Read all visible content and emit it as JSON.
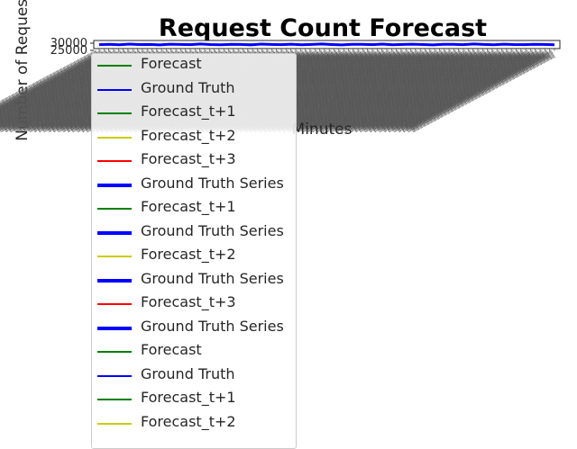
{
  "chart_data": {
    "type": "line",
    "title": "Request Count Forecast",
    "xlabel": "Minutes",
    "ylabel": "Number of Requests",
    "y_ticks": [
      "25000",
      "30000"
    ],
    "ylim": [
      24000,
      31500
    ],
    "grid": false,
    "legend_placement": "lower-left (overflowing)",
    "x_tick_count": 96,
    "series": [
      {
        "name": "Forecast",
        "color": "#008000",
        "style": "thin",
        "values": [
          27850,
          27700,
          27600,
          27900,
          28100,
          27800,
          27650,
          27950,
          28200,
          27900,
          27750,
          28000,
          27850,
          27600,
          27900,
          28150,
          27800,
          27700,
          28050,
          27900,
          27650,
          27850,
          28100,
          27750,
          27600,
          27900,
          28200,
          27950,
          27700,
          27850,
          28000,
          27800,
          27650,
          27900,
          28150,
          27850,
          27700,
          28000,
          27900,
          27750,
          27600,
          27950,
          28100,
          27800,
          27650,
          27900
        ]
      },
      {
        "name": "Ground Truth",
        "color": "#0000ff",
        "style": "thin",
        "values": [
          27600,
          28000,
          27500,
          28200,
          27700,
          27900,
          27400,
          28100,
          27800,
          27600,
          28300,
          27700,
          27500,
          28000,
          27800,
          27400,
          28200,
          27900,
          27600,
          28100,
          27500,
          27800,
          28300,
          27700,
          27400,
          28000,
          27900,
          27600,
          28200,
          27500,
          27800,
          28100,
          27700,
          27400,
          28000,
          27900,
          27600,
          28300,
          27800,
          27500,
          28100,
          27700,
          27600,
          28000,
          27800,
          27500
        ]
      },
      {
        "name": "Forecast_t+1",
        "color": "#008000",
        "style": "thin",
        "values": [
          27900,
          27750,
          27650,
          27950,
          28050,
          27850,
          27700,
          27900,
          28150,
          27950,
          27800,
          27950,
          27900,
          27650,
          27850,
          28100,
          27850,
          27750,
          28000,
          27950,
          27700,
          27800,
          28050,
          27800,
          27650,
          27850,
          28150,
          28000,
          27750,
          27800,
          27950,
          27850,
          27700,
          27850,
          28100,
          27900,
          27750,
          27950,
          27950,
          27800,
          27650,
          27900,
          28050,
          27850,
          27700,
          27850
        ]
      },
      {
        "name": "Forecast_t+2",
        "color": "#cccc00",
        "style": "thin",
        "values": [
          27800,
          27650,
          27700,
          27850,
          28000,
          27900,
          27750,
          27850,
          28100,
          28000,
          27850,
          27900,
          27950,
          27700,
          27800,
          28050,
          27900,
          27800,
          27950,
          28000,
          27750,
          27750,
          28000,
          27850,
          27700,
          27800,
          28100,
          28050,
          27800,
          27750,
          27900,
          27900,
          27750,
          27800,
          28050,
          27950,
          27800,
          27900,
          28000,
          27850,
          27700,
          27850,
          28000,
          27900,
          27750,
          27800
        ]
      },
      {
        "name": "Forecast_t+3",
        "color": "#ff0000",
        "style": "thin",
        "values": [
          27750,
          27700,
          27750,
          27800,
          27950,
          27950,
          27800,
          27800,
          28050,
          28050,
          27900,
          27850,
          28000,
          27750,
          27750,
          28000,
          27950,
          27850,
          27900,
          28050,
          27800,
          27700,
          27950,
          27900,
          27750,
          27750,
          28050,
          28100,
          27850,
          27700,
          27850,
          27950,
          27800,
          27750,
          28000,
          28000,
          27850,
          27850,
          28050,
          27900,
          27750,
          27800,
          27950,
          27950,
          27800,
          27750
        ]
      },
      {
        "name": "Ground Truth Series",
        "color": "#0000ff",
        "style": "thick",
        "values": [
          27650,
          27950,
          27550,
          28150,
          27750,
          27850,
          27450,
          28050,
          27850,
          27650,
          28250,
          27750,
          27550,
          27950,
          27850,
          27450,
          28150,
          27850,
          27650,
          28050,
          27550,
          27850,
          28250,
          27750,
          27450,
          27950,
          27950,
          27650,
          28150,
          27550,
          27850,
          28050,
          27750,
          27450,
          27950,
          27950,
          27650,
          28250,
          27850,
          27550,
          28050,
          27750,
          27650,
          27950,
          27850,
          27550
        ]
      }
    ]
  },
  "legend": {
    "entries": [
      {
        "label": "Forecast",
        "color": "#008000",
        "style": "thin"
      },
      {
        "label": "Ground Truth",
        "color": "#0000ff",
        "style": "thin"
      },
      {
        "label": "Forecast_t+1",
        "color": "#008000",
        "style": "thin"
      },
      {
        "label": "Forecast_t+2",
        "color": "#cccc00",
        "style": "thin"
      },
      {
        "label": "Forecast_t+3",
        "color": "#ff0000",
        "style": "thin"
      },
      {
        "label": "Ground Truth Series",
        "color": "#0000ff",
        "style": "thick"
      },
      {
        "label": "Forecast_t+1",
        "color": "#008000",
        "style": "thin"
      },
      {
        "label": "Ground Truth Series",
        "color": "#0000ff",
        "style": "thick"
      },
      {
        "label": "Forecast_t+2",
        "color": "#cccc00",
        "style": "thin"
      },
      {
        "label": "Ground Truth Series",
        "color": "#0000ff",
        "style": "thick"
      },
      {
        "label": "Forecast_t+3",
        "color": "#ff0000",
        "style": "thin"
      },
      {
        "label": "Ground Truth Series",
        "color": "#0000ff",
        "style": "thick"
      },
      {
        "label": "Forecast",
        "color": "#008000",
        "style": "thin"
      },
      {
        "label": "Ground Truth",
        "color": "#0000ff",
        "style": "thin"
      },
      {
        "label": "Forecast_t+1",
        "color": "#008000",
        "style": "thin"
      },
      {
        "label": "Forecast_t+2",
        "color": "#cccc00",
        "style": "thin"
      }
    ]
  }
}
